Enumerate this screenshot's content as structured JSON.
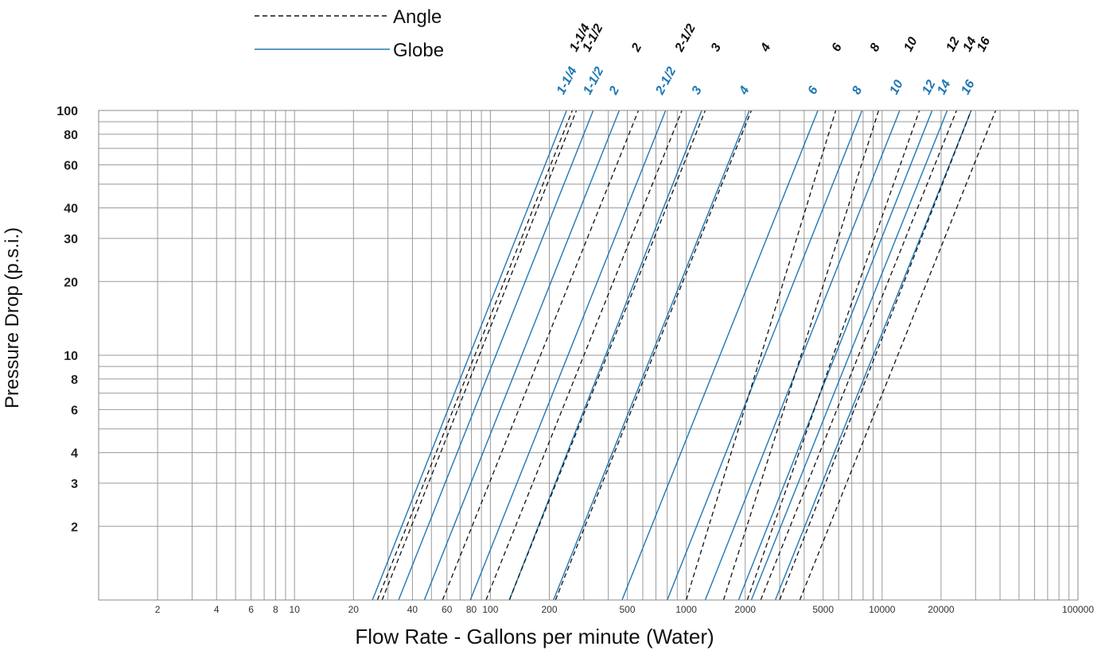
{
  "chart_data": {
    "type": "line",
    "title": "",
    "xlabel": "Flow Rate - Gallons per minute (Water)",
    "ylabel": "Pressure Drop (p.s.i.)",
    "x_scale": "log",
    "y_scale": "log",
    "xlim": [
      1,
      100000
    ],
    "ylim": [
      1,
      100
    ],
    "grid": true,
    "legend_placement": "top-left",
    "x_tick_labels": [
      {
        "value": 2,
        "label": "2"
      },
      {
        "value": 4,
        "label": "4"
      },
      {
        "value": 6,
        "label": "6"
      },
      {
        "value": 8,
        "label": "8"
      },
      {
        "value": 10,
        "label": "10"
      },
      {
        "value": 20,
        "label": "20"
      },
      {
        "value": 40,
        "label": "40"
      },
      {
        "value": 60,
        "label": "60"
      },
      {
        "value": 80,
        "label": "80"
      },
      {
        "value": 100,
        "label": "100"
      },
      {
        "value": 200,
        "label": "200"
      },
      {
        "value": 500,
        "label": "500"
      },
      {
        "value": 1000,
        "label": "1000"
      },
      {
        "value": 2000,
        "label": "2000"
      },
      {
        "value": 5000,
        "label": "5000"
      },
      {
        "value": 10000,
        "label": "10000"
      },
      {
        "value": 20000,
        "label": "20000"
      },
      {
        "value": 100000,
        "label": "100000"
      }
    ],
    "y_tick_labels": [
      {
        "value": 2,
        "label": "2"
      },
      {
        "value": 3,
        "label": "3"
      },
      {
        "value": 4,
        "label": "4"
      },
      {
        "value": 6,
        "label": "6"
      },
      {
        "value": 8,
        "label": "8"
      },
      {
        "value": 10,
        "label": "10"
      },
      {
        "value": 20,
        "label": "20"
      },
      {
        "value": 30,
        "label": "30"
      },
      {
        "value": 40,
        "label": "40"
      },
      {
        "value": 60,
        "label": "60"
      },
      {
        "value": 80,
        "label": "80"
      },
      {
        "value": 100,
        "label": "100"
      }
    ],
    "legend": [
      {
        "name": "Angle",
        "style": "dashed",
        "color": "#111111"
      },
      {
        "name": "Globe",
        "style": "solid",
        "color": "#1f78b4"
      }
    ],
    "series": [
      {
        "name": "Globe",
        "size": "1-1/4",
        "x": [
          25,
          245
        ],
        "y": [
          1,
          100
        ]
      },
      {
        "name": "Globe",
        "size": "1-1/2",
        "x": [
          34,
          335
        ],
        "y": [
          1,
          100
        ]
      },
      {
        "name": "Globe",
        "size": "2",
        "x": [
          46,
          455
        ],
        "y": [
          1,
          100
        ]
      },
      {
        "name": "Globe",
        "size": "2-1/2",
        "x": [
          79,
          785
        ],
        "y": [
          1,
          100
        ]
      },
      {
        "name": "Globe",
        "size": "3",
        "x": [
          125,
          1200
        ],
        "y": [
          1,
          100
        ]
      },
      {
        "name": "Globe",
        "size": "4",
        "x": [
          210,
          2100
        ],
        "y": [
          1,
          100
        ]
      },
      {
        "name": "Globe",
        "size": "6",
        "x": [
          470,
          4700
        ],
        "y": [
          1,
          100
        ]
      },
      {
        "name": "Globe",
        "size": "8",
        "x": [
          800,
          7900
        ],
        "y": [
          1,
          100
        ]
      },
      {
        "name": "Globe",
        "size": "10",
        "x": [
          1250,
          12300
        ],
        "y": [
          1,
          100
        ]
      },
      {
        "name": "Globe",
        "size": "12",
        "x": [
          1850,
          18000
        ],
        "y": [
          1,
          100
        ]
      },
      {
        "name": "Globe",
        "size": "14",
        "x": [
          2150,
          21500
        ],
        "y": [
          1,
          100
        ]
      },
      {
        "name": "Globe",
        "size": "16",
        "x": [
          2850,
          28500
        ],
        "y": [
          1,
          100
        ]
      },
      {
        "name": "Angle",
        "size": "1-1/4",
        "x": [
          26.5,
          262
        ],
        "y": [
          1,
          100
        ]
      },
      {
        "name": "Angle",
        "size": "1-1/2",
        "x": [
          28,
          275
        ],
        "y": [
          1,
          100
        ]
      },
      {
        "name": "Angle",
        "size": "2",
        "x": [
          57,
          570
        ],
        "y": [
          1,
          100
        ]
      },
      {
        "name": "Angle",
        "size": "2-1/2",
        "x": [
          95,
          950
        ],
        "y": [
          1,
          100
        ]
      },
      {
        "name": "Angle",
        "size": "3",
        "x": [
          215,
          2150
        ],
        "y": [
          1,
          100
        ]
      },
      {
        "name": "Angle",
        "size": "4",
        "x": [
          125,
          1250
        ],
        "y": [
          1,
          100
        ]
      },
      {
        "name": "Angle",
        "size": "6",
        "x": [
          1000,
          5800
        ],
        "y": [
          1,
          100
        ]
      },
      {
        "name": "Angle",
        "size": "8",
        "x": [
          1550,
          9600
        ],
        "y": [
          1,
          100
        ]
      },
      {
        "name": "Angle",
        "size": "10",
        "x": [
          2050,
          15500
        ],
        "y": [
          1,
          100
        ]
      },
      {
        "name": "Angle",
        "size": "12",
        "x": [
          2400,
          24000
        ],
        "y": [
          1,
          100
        ]
      },
      {
        "name": "Angle",
        "size": "14",
        "x": [
          3000,
          28500
        ],
        "y": [
          1,
          100
        ]
      },
      {
        "name": "Angle",
        "size": "16",
        "x": [
          3800,
          38000
        ],
        "y": [
          1,
          100
        ]
      }
    ],
    "size_labels": [
      {
        "series": "Globe",
        "text": "1-1/4",
        "x": 245
      },
      {
        "series": "Globe",
        "text": "1-1/2",
        "x": 335
      },
      {
        "series": "Globe",
        "text": "2",
        "x": 455
      },
      {
        "series": "Globe",
        "text": "2-1/2",
        "x": 785
      },
      {
        "series": "Globe",
        "text": "3",
        "x": 1200
      },
      {
        "series": "Globe",
        "text": "4",
        "x": 2100
      },
      {
        "series": "Globe",
        "text": "6",
        "x": 4700
      },
      {
        "series": "Globe",
        "text": "8",
        "x": 7900
      },
      {
        "series": "Globe",
        "text": "10",
        "x": 12300
      },
      {
        "series": "Globe",
        "text": "12",
        "x": 18000
      },
      {
        "series": "Globe",
        "text": "14",
        "x": 21500
      },
      {
        "series": "Globe",
        "text": "16",
        "x": 28500
      },
      {
        "series": "Angle",
        "text": "1-1/4",
        "x": 275
      },
      {
        "series": "Angle",
        "text": "1-1/2",
        "x": 320
      },
      {
        "series": "Angle",
        "text": "2",
        "x": 570
      },
      {
        "series": "Angle",
        "text": "2-1/2",
        "x": 950
      },
      {
        "series": "Angle",
        "text": "3",
        "x": 1450
      },
      {
        "series": "Angle",
        "text": "4",
        "x": 2600
      },
      {
        "series": "Angle",
        "text": "6",
        "x": 6000
      },
      {
        "series": "Angle",
        "text": "8",
        "x": 9400
      },
      {
        "series": "Angle",
        "text": "10",
        "x": 14000
      },
      {
        "series": "Angle",
        "text": "12",
        "x": 23000
      },
      {
        "series": "Angle",
        "text": "14",
        "x": 28000
      },
      {
        "series": "Angle",
        "text": "16",
        "x": 33000
      }
    ]
  },
  "colors": {
    "globe": "#1f78b4",
    "angle": "#111111",
    "grid": "#9a9a9a"
  }
}
